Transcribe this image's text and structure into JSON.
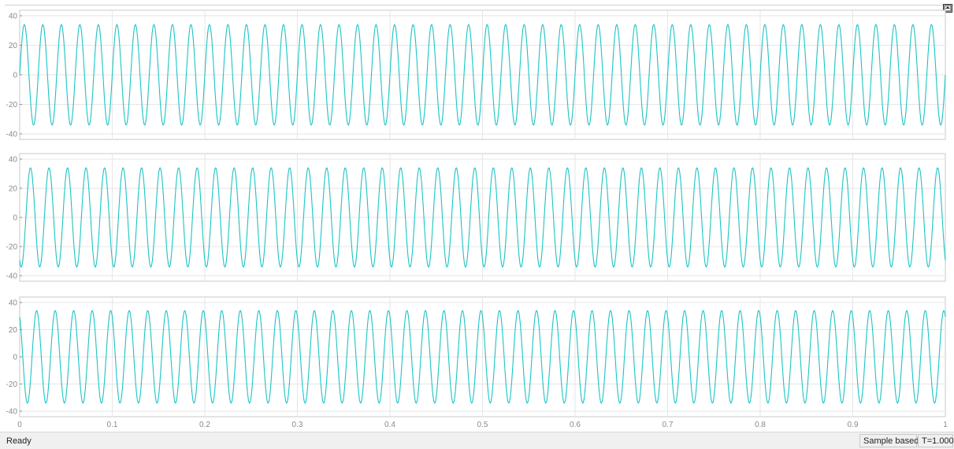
{
  "window": {
    "restore_button": "restore-axes-icon"
  },
  "colors": {
    "signal": "#1cc4c4",
    "grid": "#e6e6e6",
    "axes_border": "#c8c8c8",
    "tick_label": "#8a8a8a"
  },
  "chart_data": [
    {
      "type": "line",
      "xlim": [
        0,
        1
      ],
      "ylim": [
        -40,
        40
      ],
      "y_ticks": [
        40,
        20,
        0,
        -20,
        -40
      ],
      "x_ticks": [
        0,
        0.1,
        0.2,
        0.3,
        0.4,
        0.5,
        0.6,
        0.7,
        0.8,
        0.9,
        1
      ],
      "grid": true,
      "series": [
        {
          "amplitude": 34,
          "frequency_hz": 50,
          "phase_deg": 0,
          "values_desc": "sinusoid"
        }
      ]
    },
    {
      "type": "line",
      "xlim": [
        0,
        1
      ],
      "ylim": [
        -40,
        40
      ],
      "y_ticks": [
        40,
        20,
        0,
        -20,
        -40
      ],
      "x_ticks": [
        0,
        0.1,
        0.2,
        0.3,
        0.4,
        0.5,
        0.6,
        0.7,
        0.8,
        0.9,
        1
      ],
      "grid": true,
      "series": [
        {
          "amplitude": 34,
          "frequency_hz": 50,
          "phase_deg": -120
        }
      ]
    },
    {
      "type": "line",
      "xlim": [
        0,
        1
      ],
      "ylim": [
        -40,
        40
      ],
      "y_ticks": [
        40,
        20,
        0,
        -20,
        -40
      ],
      "x_ticks": [
        0,
        0.1,
        0.2,
        0.3,
        0.4,
        0.5,
        0.6,
        0.7,
        0.8,
        0.9,
        1
      ],
      "x_tick_labels": [
        "0",
        "0.1",
        "0.2",
        "0.3",
        "0.4",
        "0.5",
        "0.6",
        "0.7",
        "0.8",
        "0.9",
        "1"
      ],
      "grid": true,
      "series": [
        {
          "amplitude": 34,
          "frequency_hz": 50,
          "phase_deg": 120
        }
      ]
    }
  ],
  "statusbar": {
    "status": "Ready",
    "sample_mode": "Sample based",
    "time": "T=1.000"
  }
}
